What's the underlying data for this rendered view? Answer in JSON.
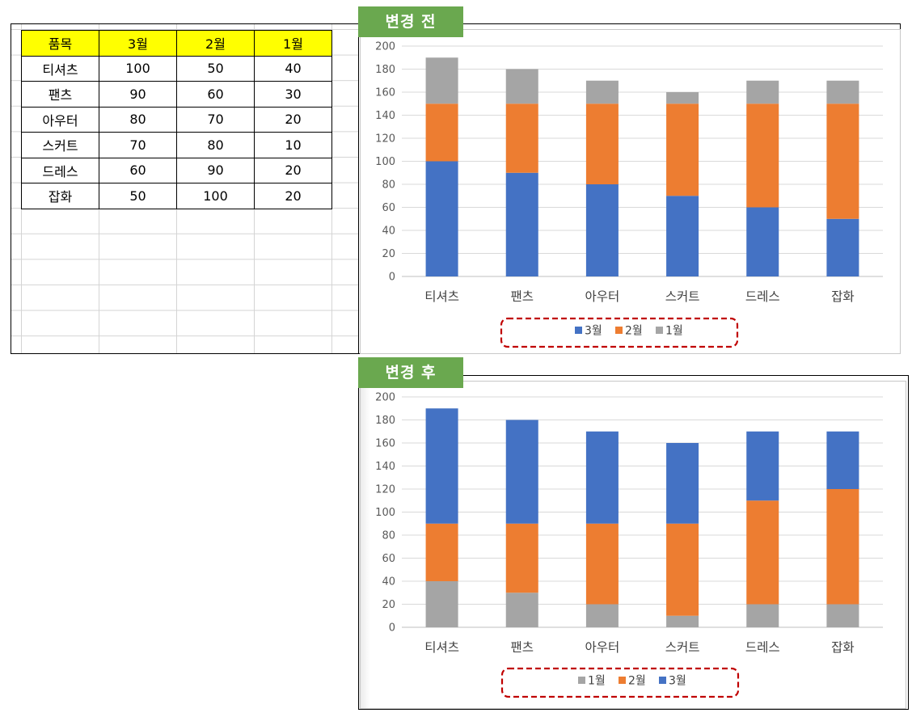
{
  "table": {
    "headers": [
      "품목",
      "3월",
      "2월",
      "1월"
    ],
    "rows": [
      [
        "티셔츠",
        "100",
        "50",
        "40"
      ],
      [
        "팬츠",
        "90",
        "60",
        "30"
      ],
      [
        "아우터",
        "80",
        "70",
        "20"
      ],
      [
        "스커트",
        "70",
        "80",
        "10"
      ],
      [
        "드레스",
        "60",
        "90",
        "20"
      ],
      [
        "잡화",
        "50",
        "100",
        "20"
      ]
    ]
  },
  "labels": {
    "before": "변경 전",
    "after": "변경 후"
  },
  "colors": {
    "3월": "#4472c4",
    "2월": "#ed7d31",
    "1월": "#a5a5a5",
    "header_fill": "#ffff00",
    "badge": "#6aa84f",
    "highlight": "#c00000"
  },
  "chart_data": [
    {
      "type": "bar",
      "stacked": true,
      "categories": [
        "티셔츠",
        "팬츠",
        "아우터",
        "스커트",
        "드레스",
        "잡화"
      ],
      "series": [
        {
          "name": "3월",
          "values": [
            100,
            90,
            80,
            70,
            60,
            50
          ]
        },
        {
          "name": "2월",
          "values": [
            50,
            60,
            70,
            80,
            90,
            100
          ]
        },
        {
          "name": "1월",
          "values": [
            40,
            30,
            20,
            10,
            20,
            20
          ]
        }
      ],
      "ylim": [
        0,
        200
      ],
      "yticks": [
        0,
        20,
        40,
        60,
        80,
        100,
        120,
        140,
        160,
        180,
        200
      ],
      "grid": true,
      "legend": "bottom",
      "legend_order": [
        "3월",
        "2월",
        "1월"
      ]
    },
    {
      "type": "bar",
      "stacked": true,
      "categories": [
        "티셔츠",
        "팬츠",
        "아우터",
        "스커트",
        "드레스",
        "잡화"
      ],
      "series": [
        {
          "name": "1월",
          "values": [
            40,
            30,
            20,
            10,
            20,
            20
          ]
        },
        {
          "name": "2월",
          "values": [
            50,
            60,
            70,
            80,
            90,
            100
          ]
        },
        {
          "name": "3월",
          "values": [
            100,
            90,
            80,
            70,
            60,
            50
          ]
        }
      ],
      "ylim": [
        0,
        200
      ],
      "yticks": [
        0,
        20,
        40,
        60,
        80,
        100,
        120,
        140,
        160,
        180,
        200
      ],
      "grid": true,
      "legend": "bottom",
      "legend_order": [
        "1월",
        "2월",
        "3월"
      ]
    }
  ]
}
